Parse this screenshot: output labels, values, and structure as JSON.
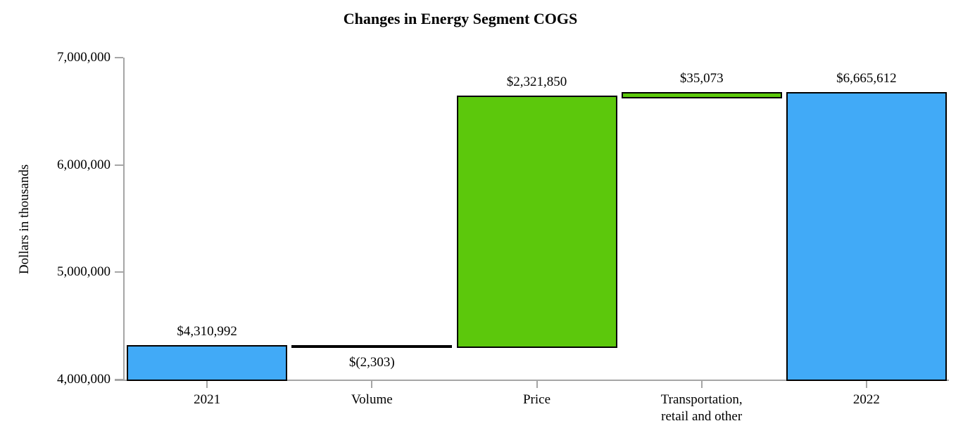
{
  "chart_data": {
    "type": "bar",
    "subtype": "waterfall",
    "title": "Changes in Energy Segment COGS",
    "ylabel": "Dollars in thousands",
    "xlabel": "",
    "ylim": [
      4000000,
      7000000
    ],
    "yticks": [
      4000000,
      5000000,
      6000000,
      7000000
    ],
    "ytick_labels": [
      "4,000,000",
      "5,000,000",
      "6,000,000",
      "7,000,000"
    ],
    "grid": false,
    "legend": false,
    "categories": [
      "2021",
      "Volume",
      "Price",
      "Transportation,\nretail and other",
      "2022"
    ],
    "colors": {
      "total_bar": "#41AAF7",
      "change_bar": "#5CC80C",
      "bar_border": "#000000",
      "axis": "#A6A6A6",
      "text": "#000000"
    },
    "bars": [
      {
        "category": "2021",
        "role": "total",
        "start": 4000000,
        "end": 4310992,
        "value": 4310992,
        "value_label": "$4,310,992",
        "label_position": "above",
        "color_key": "total_bar"
      },
      {
        "category": "Volume",
        "role": "decrease",
        "start": 4310992,
        "end": 4308689,
        "value": -2303,
        "value_label": "$(2,303)",
        "label_position": "below",
        "color_key": "change_bar"
      },
      {
        "category": "Price",
        "role": "increase",
        "start": 4308689,
        "end": 6630539,
        "value": 2321850,
        "value_label": "$2,321,850",
        "label_position": "above",
        "color_key": "change_bar"
      },
      {
        "category": "Transportation,\nretail and other",
        "role": "increase",
        "start": 6630539,
        "end": 6665612,
        "value": 35073,
        "value_label": "$35,073",
        "label_position": "above",
        "color_key": "change_bar"
      },
      {
        "category": "2022",
        "role": "total",
        "start": 4000000,
        "end": 6665612,
        "value": 6665612,
        "value_label": "$6,665,612",
        "label_position": "above",
        "color_key": "total_bar"
      }
    ]
  }
}
